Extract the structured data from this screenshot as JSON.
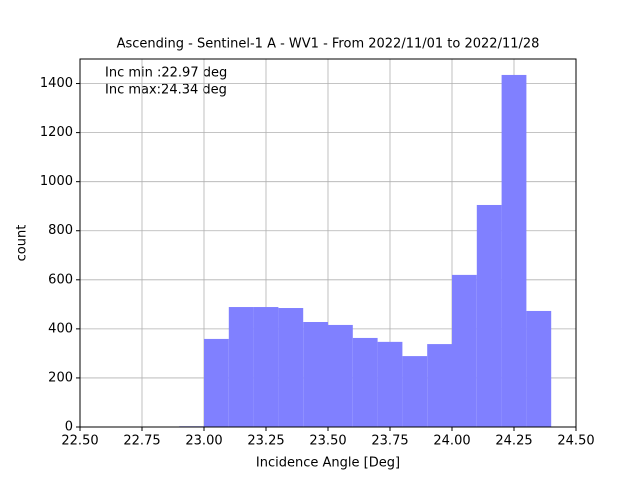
{
  "chart_data": {
    "type": "histogram",
    "title": "Ascending - Sentinel-1 A - WV1 - From 2022/11/01 to 2022/11/28",
    "xlabel": "Incidence Angle [Deg]",
    "ylabel": "count",
    "annotations": [
      "Inc min :22.97 deg",
      "Inc max:24.34 deg"
    ],
    "bins": [
      22.9,
      23.0,
      23.1,
      23.2,
      23.3,
      23.4,
      23.5,
      23.6,
      23.7,
      23.8,
      23.9,
      24.0,
      24.1,
      24.2,
      24.3,
      24.4
    ],
    "values": [
      3,
      359,
      489,
      489,
      485,
      428,
      416,
      363,
      347,
      289,
      338,
      620,
      905,
      1435,
      473
    ],
    "color": "#8080ff",
    "xlim": [
      22.5,
      24.5
    ],
    "xticks": [
      {
        "value": 22.5,
        "label": "22.50"
      },
      {
        "value": 22.75,
        "label": "22.75"
      },
      {
        "value": 23.0,
        "label": "23.00"
      },
      {
        "value": 23.25,
        "label": "23.25"
      },
      {
        "value": 23.5,
        "label": "23.50"
      },
      {
        "value": 23.75,
        "label": "23.75"
      },
      {
        "value": 24.0,
        "label": "24.00"
      },
      {
        "value": 24.25,
        "label": "24.25"
      },
      {
        "value": 24.5,
        "label": "24.50"
      }
    ],
    "ylim": [
      0,
      1500
    ],
    "yticks": [
      0,
      200,
      400,
      600,
      800,
      1000,
      1200,
      1400
    ],
    "grid": true
  }
}
